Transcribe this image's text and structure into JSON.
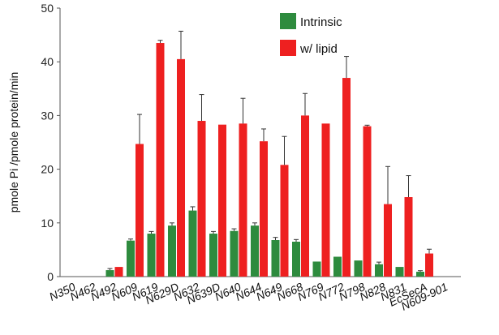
{
  "chart_data": {
    "type": "bar",
    "title": "",
    "xlabel": "",
    "ylabel": "pmole Pi /pmole protein/min",
    "ylim": [
      0,
      50
    ],
    "yticks": [
      0,
      10,
      20,
      30,
      40,
      50
    ],
    "grid": false,
    "legend_position": "top-right",
    "categories": [
      "N350",
      "N462",
      "N492",
      "N609",
      "N619",
      "N629D",
      "N632",
      "N639D",
      "N640",
      "N644",
      "N649",
      "N668",
      "N769",
      "N772",
      "N798",
      "N828",
      "N831",
      "EcSecA",
      "N609-901"
    ],
    "series": [
      {
        "name": "Intrinsic",
        "color": "#2e8b3e",
        "values": [
          0,
          0,
          1.2,
          6.7,
          8.0,
          9.5,
          12.3,
          8.0,
          8.5,
          9.5,
          6.8,
          6.5,
          2.8,
          3.7,
          3.0,
          2.3,
          1.8,
          0.9,
          0
        ],
        "errors": [
          0,
          0,
          0.3,
          0.3,
          0.4,
          0.5,
          0.7,
          0.4,
          0.4,
          0.5,
          0.5,
          0.4,
          0,
          0,
          0,
          0.4,
          0,
          0.2,
          0
        ]
      },
      {
        "name": "w/ lipid",
        "color": "#ee2020",
        "values": [
          0,
          0,
          1.8,
          24.7,
          43.5,
          40.5,
          29.0,
          28.3,
          28.5,
          25.2,
          20.8,
          30.0,
          28.5,
          37.0,
          28.0,
          13.5,
          14.8,
          4.3,
          0
        ],
        "errors": [
          0,
          0,
          0,
          5.5,
          0.5,
          5.2,
          4.9,
          0,
          4.7,
          2.3,
          5.3,
          4.1,
          0,
          4.0,
          0.2,
          7.0,
          4.0,
          0.8,
          0
        ]
      }
    ]
  }
}
